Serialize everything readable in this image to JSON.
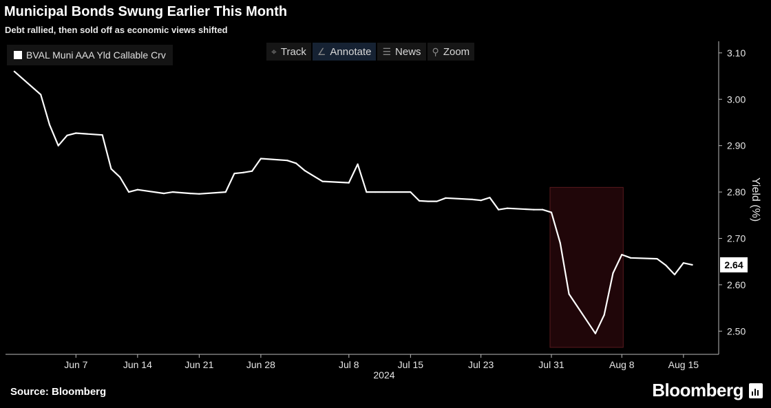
{
  "header": {
    "title": "Municipal Bonds Swung Earlier This Month",
    "subtitle": "Debt rallied, then sold off as economic views shifted"
  },
  "legend": {
    "label": "BVAL Muni AAA Yld Callable Crv"
  },
  "toolbar": {
    "track_label": "Track",
    "annotate_label": "Annotate",
    "news_label": "News",
    "zoom_label": "Zoom",
    "icons": [
      "crosshair-icon",
      "pencil-icon",
      "news-icon",
      "magnifier-icon"
    ]
  },
  "footer": {
    "source": "Source: Bloomberg",
    "brand": "Bloomberg"
  },
  "colors": {
    "background": "#000000",
    "line": "#ffffff",
    "highlight_fill": "#200609",
    "highlight_stroke": "#5a1a1e",
    "axis": "#bbbbbb"
  },
  "chart_data": {
    "type": "line",
    "title": "Municipal Bonds Swung Earlier This Month",
    "subtitle": "Debt rallied, then sold off as economic views shifted",
    "ylabel": "Yield (%)",
    "xlabel": "",
    "year_label": "2024",
    "ylim": [
      2.45,
      3.125
    ],
    "y_ticks": [
      2.5,
      2.6,
      2.7,
      2.8,
      2.9,
      3.0,
      3.1
    ],
    "y_tick_labels": [
      "2.50",
      "2.60",
      "2.70",
      "2.80",
      "2.90",
      "3.00",
      "3.10"
    ],
    "x_ticks": [
      {
        "date": "2024-06-07",
        "label": "Jun 7"
      },
      {
        "date": "2024-06-14",
        "label": "Jun 14"
      },
      {
        "date": "2024-06-21",
        "label": "Jun 21"
      },
      {
        "date": "2024-06-28",
        "label": "Jun 28"
      },
      {
        "date": "2024-07-08",
        "label": "Jul 8"
      },
      {
        "date": "2024-07-15",
        "label": "Jul 15"
      },
      {
        "date": "2024-07-23",
        "label": "Jul 23"
      },
      {
        "date": "2024-07-31",
        "label": "Jul 31"
      },
      {
        "date": "2024-08-08",
        "label": "Aug 8"
      },
      {
        "date": "2024-08-15",
        "label": "Aug 15"
      }
    ],
    "last_value_label": "2.64",
    "grid": false,
    "legend_position": "top-left",
    "highlight": {
      "x_start": "2024-07-31",
      "x_end": "2024-08-08",
      "y_min": 2.465,
      "y_max": 2.81
    },
    "series": [
      {
        "name": "BVAL Muni AAA Yld Callable Crv",
        "points": [
          {
            "x": "2024-05-31",
            "y": 3.06
          },
          {
            "x": "2024-06-03",
            "y": 3.01
          },
          {
            "x": "2024-06-04",
            "y": 2.945
          },
          {
            "x": "2024-06-05",
            "y": 2.9
          },
          {
            "x": "2024-06-06",
            "y": 2.922
          },
          {
            "x": "2024-06-07",
            "y": 2.927
          },
          {
            "x": "2024-06-10",
            "y": 2.923
          },
          {
            "x": "2024-06-11",
            "y": 2.85
          },
          {
            "x": "2024-06-12",
            "y": 2.832
          },
          {
            "x": "2024-06-13",
            "y": 2.8
          },
          {
            "x": "2024-06-14",
            "y": 2.805
          },
          {
            "x": "2024-06-17",
            "y": 2.797
          },
          {
            "x": "2024-06-18",
            "y": 2.8
          },
          {
            "x": "2024-06-20",
            "y": 2.797
          },
          {
            "x": "2024-06-21",
            "y": 2.796
          },
          {
            "x": "2024-06-24",
            "y": 2.8
          },
          {
            "x": "2024-06-25",
            "y": 2.84
          },
          {
            "x": "2024-06-26",
            "y": 2.842
          },
          {
            "x": "2024-06-27",
            "y": 2.845
          },
          {
            "x": "2024-06-28",
            "y": 2.872
          },
          {
            "x": "2024-07-01",
            "y": 2.868
          },
          {
            "x": "2024-07-02",
            "y": 2.862
          },
          {
            "x": "2024-07-03",
            "y": 2.846
          },
          {
            "x": "2024-07-05",
            "y": 2.823
          },
          {
            "x": "2024-07-08",
            "y": 2.82
          },
          {
            "x": "2024-07-09",
            "y": 2.86
          },
          {
            "x": "2024-07-10",
            "y": 2.8
          },
          {
            "x": "2024-07-11",
            "y": 2.8
          },
          {
            "x": "2024-07-12",
            "y": 2.8
          },
          {
            "x": "2024-07-15",
            "y": 2.8
          },
          {
            "x": "2024-07-16",
            "y": 2.781
          },
          {
            "x": "2024-07-17",
            "y": 2.78
          },
          {
            "x": "2024-07-18",
            "y": 2.78
          },
          {
            "x": "2024-07-19",
            "y": 2.787
          },
          {
            "x": "2024-07-22",
            "y": 2.784
          },
          {
            "x": "2024-07-23",
            "y": 2.782
          },
          {
            "x": "2024-07-24",
            "y": 2.788
          },
          {
            "x": "2024-07-25",
            "y": 2.762
          },
          {
            "x": "2024-07-26",
            "y": 2.765
          },
          {
            "x": "2024-07-29",
            "y": 2.762
          },
          {
            "x": "2024-07-30",
            "y": 2.762
          },
          {
            "x": "2024-07-31",
            "y": 2.756
          },
          {
            "x": "2024-08-01",
            "y": 2.69
          },
          {
            "x": "2024-08-02",
            "y": 2.58
          },
          {
            "x": "2024-08-05",
            "y": 2.495
          },
          {
            "x": "2024-08-06",
            "y": 2.535
          },
          {
            "x": "2024-08-07",
            "y": 2.625
          },
          {
            "x": "2024-08-08",
            "y": 2.665
          },
          {
            "x": "2024-08-09",
            "y": 2.658
          },
          {
            "x": "2024-08-12",
            "y": 2.656
          },
          {
            "x": "2024-08-13",
            "y": 2.642
          },
          {
            "x": "2024-08-14",
            "y": 2.622
          },
          {
            "x": "2024-08-15",
            "y": 2.647
          },
          {
            "x": "2024-08-16",
            "y": 2.643
          }
        ]
      }
    ]
  }
}
